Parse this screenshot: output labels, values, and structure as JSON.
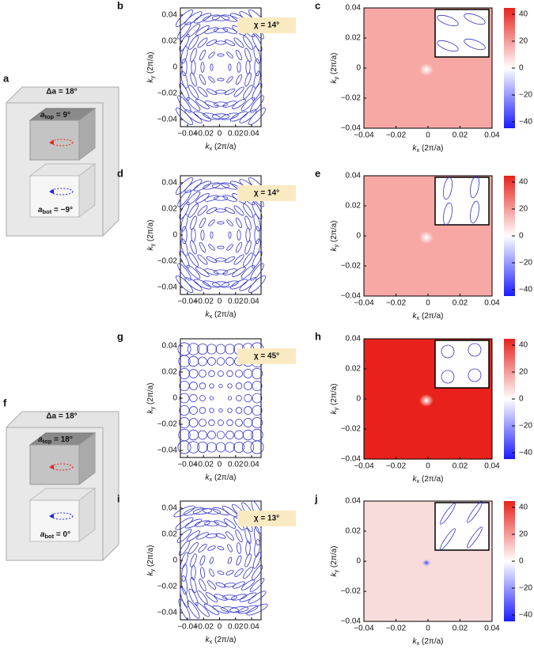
{
  "diagrams": [
    {
      "label": "a",
      "delta": "Δa = 18°",
      "top": {
        "symbol": "a",
        "sub": "top",
        "value": " = 9°"
      },
      "bot": {
        "symbol": "a",
        "sub": "bot",
        "value": " = −9°"
      }
    },
    {
      "label": "f",
      "delta": "Δa = 18°",
      "top": {
        "symbol": "a",
        "sub": "top",
        "value": " = 18°"
      },
      "bot": {
        "symbol": "a",
        "sub": "bot",
        "value": " = 0°"
      }
    }
  ],
  "ellipse_plots": [
    {
      "label": "b",
      "chi": "χ = 14°"
    },
    {
      "label": "d",
      "chi": "χ = 14°"
    },
    {
      "label": "g",
      "chi": "χ = 45°"
    },
    {
      "label": "i",
      "chi": "χ = 13°"
    }
  ],
  "maps": [
    {
      "label": "c"
    },
    {
      "label": "e"
    },
    {
      "label": "h"
    },
    {
      "label": "j"
    }
  ],
  "axis_ticks": [
    "−0.04",
    "−0.02",
    "0",
    "0.02",
    "0.04"
  ],
  "colorbar_ticks": [
    "40",
    "20",
    "0",
    "−20",
    "−40"
  ],
  "xlabel": {
    "symbol": "k",
    "sub": "x",
    "unit": " (2π/a)"
  },
  "ylabel": {
    "symbol": "k",
    "sub": "y",
    "unit": " (2π/a)"
  }
}
